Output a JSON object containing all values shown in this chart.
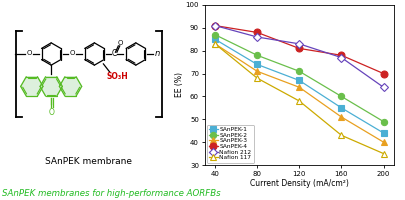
{
  "x": [
    40,
    80,
    120,
    160,
    200
  ],
  "series": {
    "SAnPEK-1": {
      "values": [
        85,
        74,
        67,
        55,
        44
      ],
      "color": "#4bafd4",
      "marker": "s",
      "filled": true
    },
    "SAnPEK-2": {
      "values": [
        87,
        78,
        71,
        60,
        49
      ],
      "color": "#6abf4b",
      "marker": "o",
      "filled": true
    },
    "SAnPEK-3": {
      "values": [
        83,
        71,
        64,
        51,
        40
      ],
      "color": "#e8a020",
      "marker": "^",
      "filled": true
    },
    "SAnPEK-4": {
      "values": [
        91,
        88,
        81,
        78,
        70
      ],
      "color": "#cc2222",
      "marker": "o",
      "filled": true
    },
    "Nafion 212": {
      "values": [
        91,
        86,
        83,
        77,
        64
      ],
      "color": "#6644bb",
      "marker": "D",
      "filled": false
    },
    "Nafion 117": {
      "values": [
        83,
        68,
        58,
        43,
        35
      ],
      "color": "#ccaa00",
      "marker": "^",
      "filled": false
    }
  },
  "xlabel": "Current Density (mA/cm²)",
  "ylabel": "EE (%)",
  "xlim": [
    30,
    210
  ],
  "ylim": [
    30,
    100
  ],
  "xticks": [
    40,
    80,
    120,
    160,
    200
  ],
  "yticks": [
    30,
    40,
    50,
    60,
    70,
    80,
    90,
    100
  ],
  "caption": "SAnPEK membranes for high-performance AORFBs",
  "caption_color": "#22bb22",
  "label_bottom": "SAnPEK membrane",
  "so3h_color": "#cc0000",
  "anthrone_color": "#55bb22",
  "background_color": "#ffffff"
}
